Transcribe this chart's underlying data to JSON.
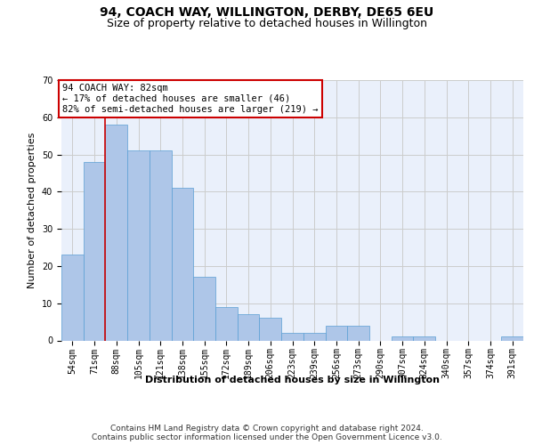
{
  "title": "94, COACH WAY, WILLINGTON, DERBY, DE65 6EU",
  "subtitle": "Size of property relative to detached houses in Willington",
  "xlabel": "Distribution of detached houses by size in Willington",
  "ylabel": "Number of detached properties",
  "categories": [
    "54sqm",
    "71sqm",
    "88sqm",
    "105sqm",
    "121sqm",
    "138sqm",
    "155sqm",
    "172sqm",
    "189sqm",
    "206sqm",
    "223sqm",
    "239sqm",
    "256sqm",
    "273sqm",
    "290sqm",
    "307sqm",
    "324sqm",
    "340sqm",
    "357sqm",
    "374sqm",
    "391sqm"
  ],
  "values": [
    23,
    48,
    58,
    51,
    51,
    41,
    17,
    9,
    7,
    6,
    2,
    2,
    4,
    4,
    0,
    1,
    1,
    0,
    0,
    0,
    1
  ],
  "bar_color": "#aec6e8",
  "bar_edge_color": "#5a9fd4",
  "annotation_text": "94 COACH WAY: 82sqm\n← 17% of detached houses are smaller (46)\n82% of semi-detached houses are larger (219) →",
  "annotation_box_color": "#ffffff",
  "annotation_box_edge_color": "#cc0000",
  "vline_color": "#cc0000",
  "vline_x": 1.5,
  "ylim": [
    0,
    70
  ],
  "yticks": [
    0,
    10,
    20,
    30,
    40,
    50,
    60,
    70
  ],
  "grid_color": "#cccccc",
  "background_color": "#eaf0fb",
  "footer_text": "Contains HM Land Registry data © Crown copyright and database right 2024.\nContains public sector information licensed under the Open Government Licence v3.0.",
  "title_fontsize": 10,
  "subtitle_fontsize": 9,
  "axis_label_fontsize": 8,
  "tick_fontsize": 7,
  "annotation_fontsize": 7.5,
  "footer_fontsize": 6.5
}
